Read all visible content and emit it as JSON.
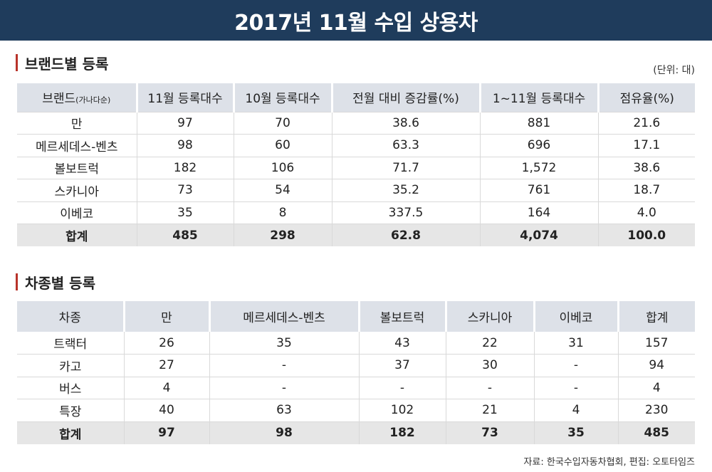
{
  "title": "2017년 11월 수입 상용차",
  "section1": {
    "heading": "브랜드별 등록",
    "unit": "(단위: 대)",
    "headers": {
      "brand": "브랜드",
      "brand_sub": "(가나다순)",
      "nov": "11월 등록대수",
      "oct": "10월 등록대수",
      "change": "전월 대비 증감률(%)",
      "ytd": "1~11월 등록대수",
      "share": "점유율(%)"
    },
    "rows": [
      {
        "brand": "만",
        "nov": "97",
        "oct": "70",
        "change": "38.6",
        "ytd": "881",
        "share": "21.6"
      },
      {
        "brand": "메르세데스-벤츠",
        "nov": "98",
        "oct": "60",
        "change": "63.3",
        "ytd": "696",
        "share": "17.1"
      },
      {
        "brand": "볼보트럭",
        "nov": "182",
        "oct": "106",
        "change": "71.7",
        "ytd": "1,572",
        "share": "38.6"
      },
      {
        "brand": "스카니아",
        "nov": "73",
        "oct": "54",
        "change": "35.2",
        "ytd": "761",
        "share": "18.7"
      },
      {
        "brand": "이베코",
        "nov": "35",
        "oct": "8",
        "change": "337.5",
        "ytd": "164",
        "share": "4.0"
      }
    ],
    "total": {
      "brand": "합계",
      "nov": "485",
      "oct": "298",
      "change": "62.8",
      "ytd": "4,074",
      "share": "100.0"
    }
  },
  "section2": {
    "heading": "차종별 등록",
    "headers": [
      "차종",
      "만",
      "메르세데스-벤츠",
      "볼보트럭",
      "스카니아",
      "이베코",
      "합계"
    ],
    "rows": [
      [
        "트랙터",
        "26",
        "35",
        "43",
        "22",
        "31",
        "157"
      ],
      [
        "카고",
        "27",
        "-",
        "37",
        "30",
        "-",
        "94"
      ],
      [
        "버스",
        "4",
        "-",
        "-",
        "-",
        "-",
        "4"
      ],
      [
        "특장",
        "40",
        "63",
        "102",
        "21",
        "4",
        "230"
      ]
    ],
    "total": [
      "합계",
      "97",
      "98",
      "182",
      "73",
      "35",
      "485"
    ]
  },
  "source": "자료: 한국수입자동차협회,  편집: 오토타임즈",
  "colors": {
    "banner": "#1f3c5c",
    "accent": "#b8332a",
    "header_bg": "#dde1e8",
    "total_bg": "#e6e6e6"
  }
}
